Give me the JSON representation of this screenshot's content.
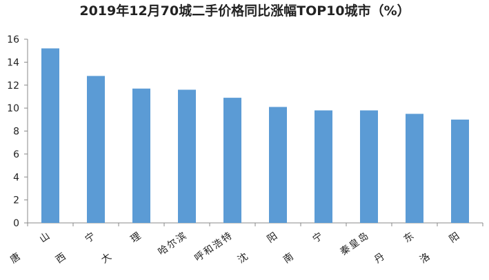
{
  "chart_data": {
    "type": "bar",
    "title": "2019年12月70城二手价格同比涨幅TOP10城市（%）",
    "categories": [
      "唐山",
      "西宁",
      "大理",
      "哈尔滨",
      "呼和浩特",
      "沈阳",
      "南宁",
      "秦皇岛",
      "丹东",
      "洛阳"
    ],
    "values": [
      15.2,
      12.8,
      11.7,
      11.6,
      10.9,
      10.1,
      9.8,
      9.8,
      9.5,
      9.0
    ],
    "color": "#5b9bd5",
    "ylim": [
      0,
      16
    ],
    "yticks": [
      0,
      2,
      4,
      6,
      8,
      10,
      12,
      14,
      16
    ],
    "grid": false
  }
}
